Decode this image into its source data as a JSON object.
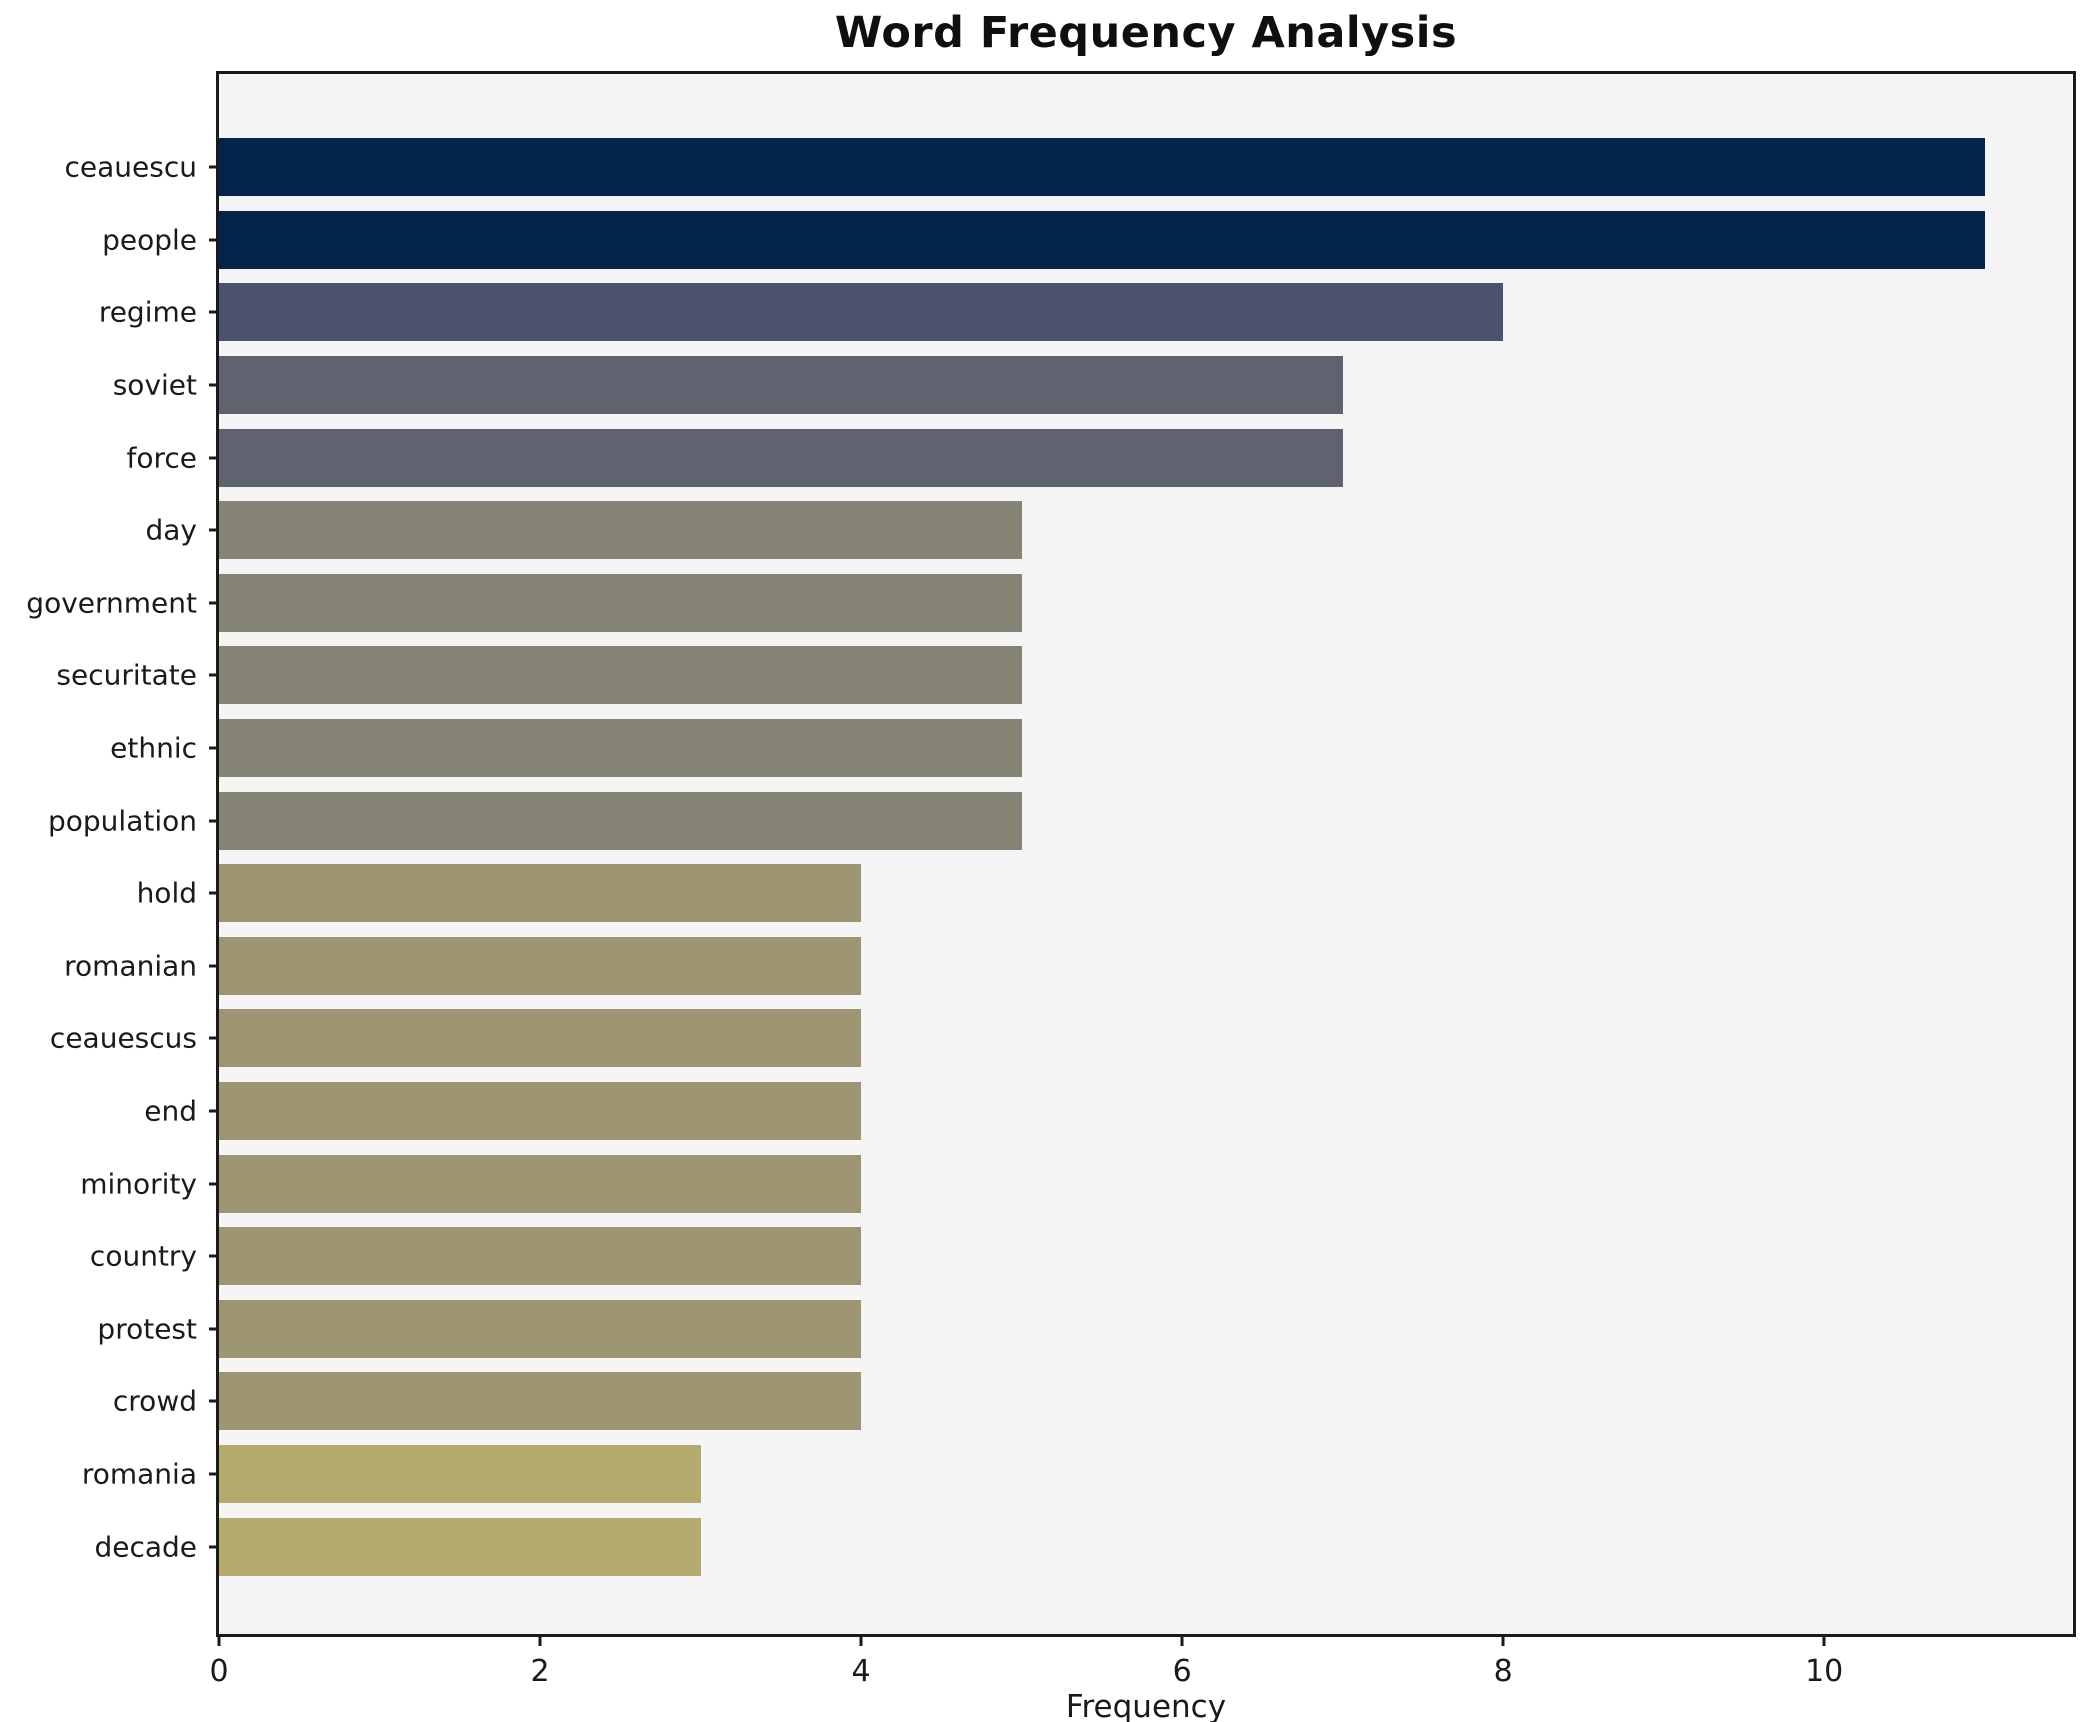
{
  "title": "Word Frequency Analysis",
  "xlabel": "Frequency",
  "chart_data": {
    "type": "bar",
    "orientation": "horizontal",
    "title": "Word Frequency Analysis",
    "xlabel": "Frequency",
    "ylabel": "",
    "xlim": [
      0,
      11.55
    ],
    "grid": false,
    "legend": null,
    "plot_background": "#f5f5f6",
    "spine_color": "#1a1a1a",
    "x_ticks": [
      0,
      2,
      4,
      6,
      8,
      10
    ],
    "categories": [
      "ceauescu",
      "people",
      "regime",
      "soviet",
      "force",
      "day",
      "government",
      "securitate",
      "ethnic",
      "population",
      "hold",
      "romanian",
      "ceauescus",
      "end",
      "minority",
      "country",
      "protest",
      "crowd",
      "romania",
      "decade"
    ],
    "values": [
      11,
      11,
      8,
      7,
      7,
      5,
      5,
      5,
      5,
      5,
      4,
      4,
      4,
      4,
      4,
      4,
      4,
      4,
      3,
      3
    ],
    "bar_colors": [
      "#04234d",
      "#04234d",
      "#4a526e",
      "#5f6370",
      "#5f6370",
      "#868474",
      "#868474",
      "#868474",
      "#868474",
      "#868474",
      "#9e9572",
      "#9e9572",
      "#9e9572",
      "#9e9572",
      "#9e9572",
      "#9e9572",
      "#9e9572",
      "#9e9572",
      "#b4aa6e",
      "#b4aa6e"
    ]
  }
}
